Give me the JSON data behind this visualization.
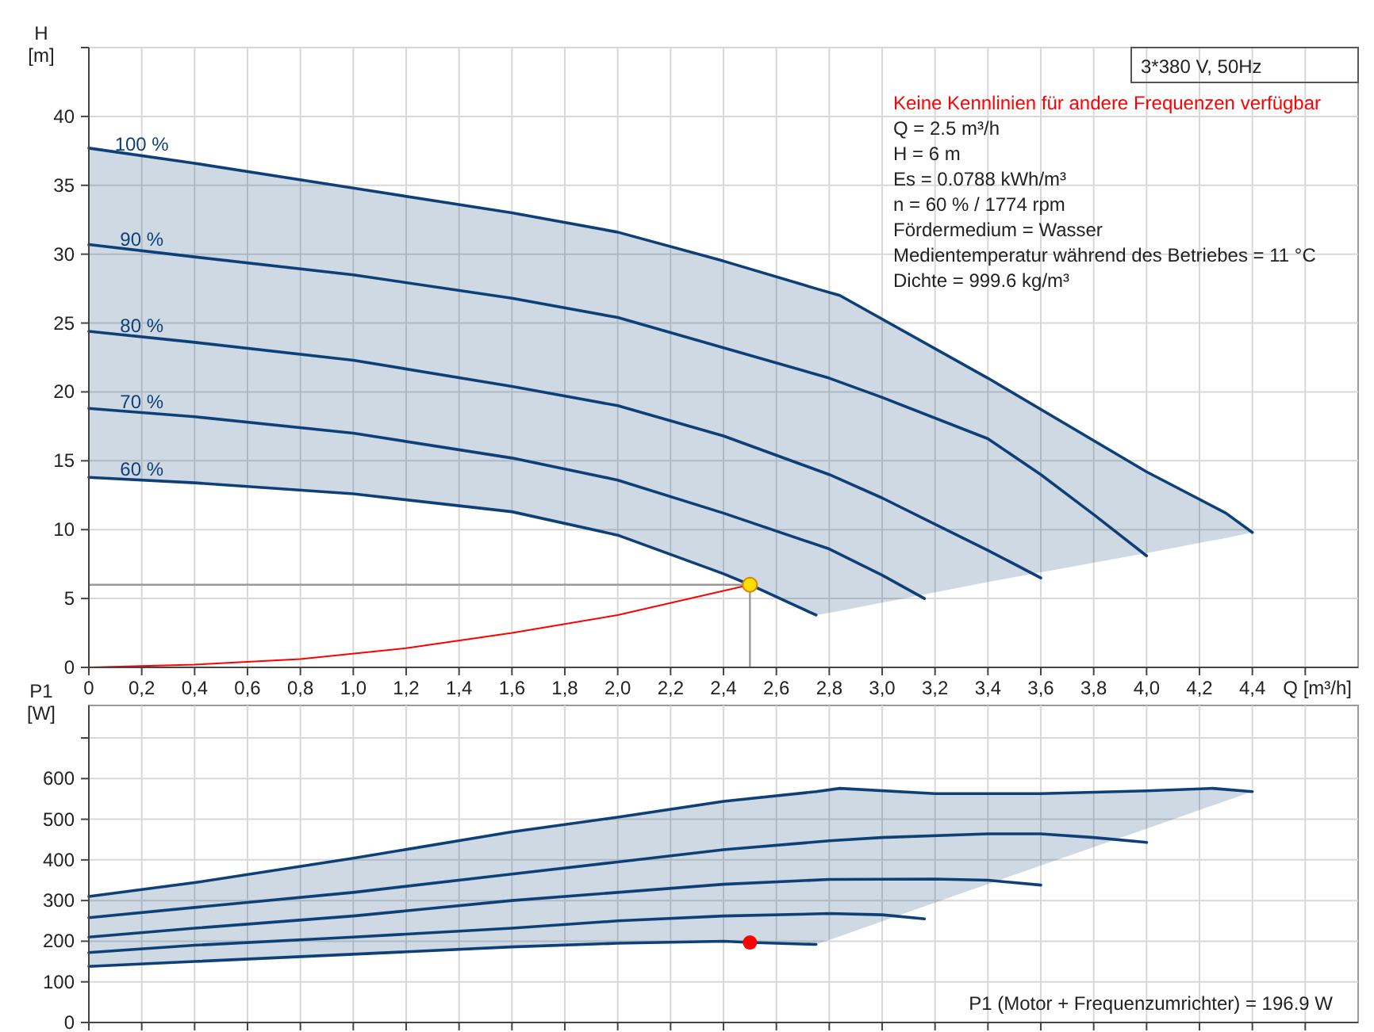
{
  "chart_data": [
    {
      "type": "line",
      "ylabel": "H [m]",
      "xlabel": "Q [m³/h]",
      "xlim": [
        0,
        4.8
      ],
      "ylim": [
        0,
        45
      ],
      "xticks": [
        0,
        {
          "value": 0.2,
          "label": "0,2"
        },
        {
          "value": 0.4,
          "label": "0,4"
        },
        {
          "value": 0.6,
          "label": "0,6"
        },
        {
          "value": 0.8,
          "label": "0,8"
        },
        {
          "value": 1,
          "label": "1,0"
        },
        {
          "value": 1.2,
          "label": "1,2"
        },
        {
          "value": 1.4,
          "label": "1,4"
        },
        {
          "value": 1.6,
          "label": "1,6"
        },
        {
          "value": 1.8,
          "label": "1,8"
        },
        {
          "value": 2,
          "label": "2,0"
        },
        {
          "value": 2.2,
          "label": "2,2"
        },
        {
          "value": 2.4,
          "label": "2,4"
        },
        {
          "value": 2.6,
          "label": "2,6"
        },
        {
          "value": 2.8,
          "label": "2,8"
        },
        {
          "value": 3,
          "label": "3,0"
        },
        {
          "value": 3.2,
          "label": "3,2"
        },
        {
          "value": 3.4,
          "label": "3,4"
        },
        {
          "value": 3.6,
          "label": "3,6"
        },
        {
          "value": 3.8,
          "label": "3,8"
        },
        {
          "value": 4,
          "label": "4,0"
        },
        {
          "value": 4.2,
          "label": "4,2"
        },
        {
          "value": 4.4,
          "label": "4,4"
        },
        {
          "value": 4.6,
          "label": null
        }
      ],
      "yticks": [
        0,
        5,
        10,
        15,
        20,
        25,
        30,
        35,
        40,
        {
          "value": 45,
          "label": null
        }
      ],
      "grid": true,
      "legend": false,
      "annotations": [
        "3*380 V, 50Hz",
        "Keine Kennlinien für andere Frequenzen verfügbar",
        "Q = 2.5 m³/h",
        "H = 6 m",
        "Es = 0.0788 kWh/m³",
        "n = 60 % / 1774 rpm",
        "Fördermedium = Wasser",
        "Medientemperatur während des Betriebes = 11 °C",
        "Dichte = 999.6 kg/m³"
      ],
      "ref_lines": [
        {
          "axis": "y",
          "value": 6,
          "color": "#999999"
        },
        {
          "axis": "x",
          "value": 2.5,
          "color": "#999999"
        }
      ],
      "series": [
        {
          "name": "100 %",
          "color": "#0e4077",
          "x": [
            0,
            0.4,
            1,
            1.6,
            2,
            2.4,
            2.75,
            2.84,
            3.4,
            4,
            4.3,
            4.4
          ],
          "values": [
            37.7,
            36.6,
            34.8,
            33,
            31.6,
            29.5,
            27.5,
            27,
            21,
            14.2,
            11.2,
            9.8
          ],
          "upper": [
            37.7,
            36.6,
            34.8,
            33,
            31.6,
            29.5,
            27.5,
            27,
            21,
            14.2,
            11.2,
            9.8
          ],
          "lower": [
            13.8,
            13.4,
            12.6,
            11.3,
            9.6,
            6.8,
            3.8,
            4.1,
            6.2,
            8.3,
            9.4,
            9.8
          ]
        },
        {
          "name": "90 %",
          "color": "#0e4077",
          "x": [
            0,
            0.4,
            1,
            1.6,
            2,
            2.4,
            2.8,
            3,
            3.4,
            3.6,
            3.8,
            4
          ],
          "values": [
            30.7,
            29.8,
            28.5,
            26.8,
            25.4,
            23.2,
            21,
            19.6,
            16.6,
            14,
            11.1,
            8.1
          ]
        },
        {
          "name": "80 %",
          "color": "#0e4077",
          "x": [
            0,
            0.4,
            1,
            1.6,
            2,
            2.4,
            2.8,
            3,
            3.2,
            3.4,
            3.6
          ],
          "values": [
            24.4,
            23.6,
            22.3,
            20.4,
            19,
            16.8,
            14,
            12.3,
            10.4,
            8.5,
            6.5
          ]
        },
        {
          "name": "70 %",
          "color": "#0e4077",
          "x": [
            0,
            0.4,
            1,
            1.6,
            2,
            2.4,
            2.8,
            3,
            3.16
          ],
          "values": [
            18.8,
            18.2,
            17,
            15.2,
            13.6,
            11.2,
            8.6,
            6.7,
            5
          ]
        },
        {
          "name": "60 %",
          "color": "#0e4077",
          "x": [
            0,
            0.4,
            1,
            1.6,
            2,
            2.4,
            2.5,
            2.75
          ],
          "values": [
            13.8,
            13.4,
            12.6,
            11.3,
            9.6,
            6.8,
            6,
            3.8
          ]
        },
        {
          "color": "#ff0000",
          "x": [
            0,
            0.4,
            0.8,
            1.2,
            1.6,
            2,
            2.5
          ],
          "values": [
            0,
            0.2,
            0.6,
            1.4,
            2.5,
            3.8,
            6
          ]
        },
        {
          "type": "scatter",
          "marker": "circle",
          "color": "#ffe000",
          "x": [
            2.5
          ],
          "values": [
            6
          ]
        }
      ]
    },
    {
      "type": "line",
      "ylabel": "P1 [W]",
      "xlim": [
        0,
        4.8
      ],
      "ylim": [
        0,
        780
      ],
      "xticks": [
        0,
        0.2,
        0.4,
        0.6,
        0.8,
        1,
        1.2,
        1.4,
        1.6,
        1.8,
        2,
        2.2,
        2.4,
        2.6,
        2.8,
        3,
        3.2,
        3.4,
        3.6,
        3.8,
        4,
        4.2,
        4.4,
        4.6
      ],
      "yticks": [
        0,
        100,
        200,
        300,
        400,
        500,
        600,
        {
          "value": 700,
          "label": null
        }
      ],
      "tick_labels": "y",
      "grid": true,
      "legend": false,
      "annotations": [
        "P1 (Motor + Frequenzumrichter) = 196.9 W"
      ],
      "series": [
        {
          "color": "#0e4077",
          "x": [
            0,
            0.4,
            1,
            1.6,
            2,
            2.4,
            2.75,
            2.84,
            3.2,
            3.6,
            4,
            4.25,
            4.4
          ],
          "values": [
            310,
            344,
            404,
            469,
            505,
            544,
            568,
            576,
            563,
            563,
            570,
            576,
            568
          ],
          "upper": [
            310,
            344,
            404,
            469,
            505,
            544,
            568,
            576,
            563,
            563,
            570,
            576,
            568
          ],
          "lower": [
            138,
            150,
            168,
            186,
            195,
            200,
            192,
            212,
            295,
            386,
            477,
            534,
            568
          ]
        },
        {
          "color": "#0e4077",
          "x": [
            0,
            0.4,
            1,
            1.6,
            2,
            2.4,
            2.8,
            3,
            3.4,
            3.6,
            3.8,
            4
          ],
          "values": [
            258,
            283,
            320,
            365,
            395,
            425,
            447,
            455,
            464,
            464,
            455,
            443
          ]
        },
        {
          "color": "#0e4077",
          "x": [
            0,
            0.4,
            1,
            1.6,
            2,
            2.4,
            2.8,
            3.2,
            3.4,
            3.6
          ],
          "values": [
            210,
            232,
            262,
            300,
            320,
            340,
            352,
            353,
            350,
            338
          ]
        },
        {
          "color": "#0e4077",
          "x": [
            0,
            0.4,
            1,
            1.6,
            2,
            2.4,
            2.8,
            3,
            3.16
          ],
          "values": [
            172,
            190,
            210,
            232,
            250,
            262,
            268,
            265,
            255
          ]
        },
        {
          "color": "#0e4077",
          "x": [
            0,
            0.4,
            1,
            1.6,
            2,
            2.4,
            2.5,
            2.75
          ],
          "values": [
            138,
            150,
            168,
            186,
            195,
            200,
            197,
            192
          ]
        },
        {
          "type": "scatter",
          "marker": "circle",
          "color": "#ff0000",
          "x": [
            2.5
          ],
          "values": [
            196.9
          ]
        }
      ]
    }
  ]
}
